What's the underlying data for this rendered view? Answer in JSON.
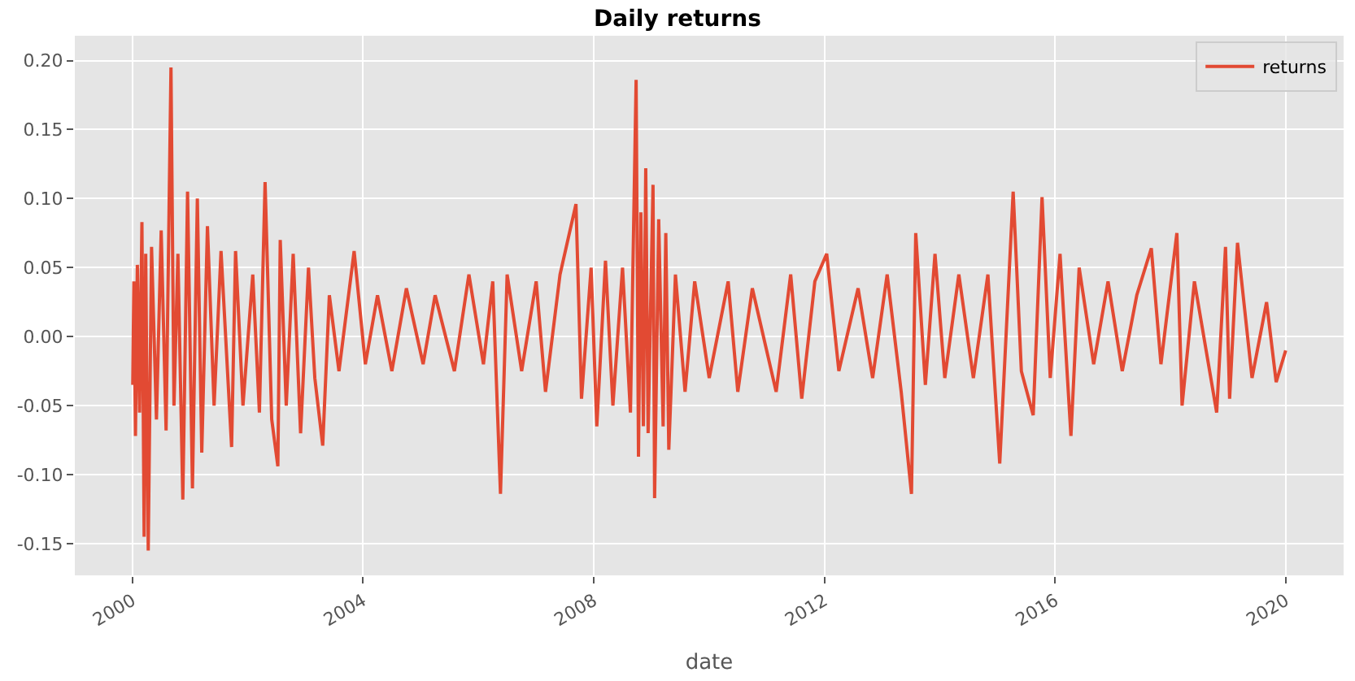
{
  "chart_data": {
    "type": "line",
    "title": "Daily returns",
    "xlabel": "date",
    "x": [
      "2000-01-03",
      "2000-01-10",
      "2000-01-20",
      "2000-02-01",
      "2000-02-15",
      "2000-03-01",
      "2000-03-15",
      "2000-03-25",
      "2000-04-10",
      "2000-05-01",
      "2000-06-01",
      "2000-07-01",
      "2000-08-01",
      "2000-09-01",
      "2000-09-20",
      "2000-10-15",
      "2000-11-15",
      "2000-12-15",
      "2001-01-15",
      "2001-02-15",
      "2001-03-15",
      "2001-04-20",
      "2001-06-01",
      "2001-07-15",
      "2001-09-20",
      "2001-10-15",
      "2001-12-01",
      "2002-02-01",
      "2002-03-15",
      "2002-04-20",
      "2002-06-01",
      "2002-07-10",
      "2002-07-25",
      "2002-09-01",
      "2002-10-15",
      "2002-12-01",
      "2003-01-20",
      "2003-03-01",
      "2003-04-20",
      "2003-06-01",
      "2003-08-01",
      "2003-11-05",
      "2004-01-15",
      "2004-04-01",
      "2004-07-01",
      "2004-10-01",
      "2005-01-15",
      "2005-04-01",
      "2005-08-01",
      "2005-11-01",
      "2006-02-01",
      "2006-04-01",
      "2006-05-20",
      "2006-07-01",
      "2006-10-01",
      "2007-01-01",
      "2007-03-01",
      "2007-06-01",
      "2007-09-10",
      "2007-10-15",
      "2007-12-15",
      "2008-01-20",
      "2008-03-15",
      "2008-05-01",
      "2008-07-01",
      "2008-08-20",
      "2008-09-25",
      "2008-10-10",
      "2008-10-25",
      "2008-11-10",
      "2008-11-25",
      "2008-12-10",
      "2009-01-10",
      "2009-01-20",
      "2009-02-15",
      "2009-03-15",
      "2009-04-01",
      "2009-04-20",
      "2009-06-01",
      "2009-08-01",
      "2009-10-01",
      "2010-01-01",
      "2010-05-01",
      "2010-07-01",
      "2010-10-01",
      "2011-03-01",
      "2011-06-01",
      "2011-08-10",
      "2011-11-01",
      "2012-01-15",
      "2012-04-01",
      "2012-08-01",
      "2012-11-01",
      "2013-02-01",
      "2013-05-01",
      "2013-07-05",
      "2013-08-01",
      "2013-10-01",
      "2013-12-01",
      "2014-02-01",
      "2014-05-01",
      "2014-08-01",
      "2014-11-01",
      "2015-01-15",
      "2015-04-10",
      "2015-06-01",
      "2015-08-15",
      "2015-10-10",
      "2015-12-01",
      "2016-02-01",
      "2016-04-10",
      "2016-06-01",
      "2016-09-01",
      "2016-12-01",
      "2017-03-01",
      "2017-06-01",
      "2017-09-01",
      "2017-11-01",
      "2018-02-10",
      "2018-03-15",
      "2018-06-01",
      "2018-10-20",
      "2018-12-15",
      "2019-01-10",
      "2019-03-01",
      "2019-06-01",
      "2019-09-01",
      "2019-11-01",
      "2019-12-31"
    ],
    "series": [
      {
        "name": "returns",
        "color": "#e24a33",
        "values": [
          -0.035,
          0.04,
          -0.072,
          0.052,
          -0.055,
          0.083,
          -0.145,
          0.06,
          -0.155,
          0.065,
          -0.06,
          0.077,
          -0.068,
          0.195,
          -0.05,
          0.06,
          -0.118,
          0.105,
          -0.11,
          0.1,
          -0.084,
          0.08,
          -0.05,
          0.062,
          -0.08,
          0.062,
          -0.05,
          0.045,
          -0.055,
          0.112,
          -0.06,
          -0.094,
          0.07,
          -0.05,
          0.06,
          -0.07,
          0.05,
          -0.03,
          -0.079,
          0.03,
          -0.025,
          0.062,
          -0.02,
          0.03,
          -0.025,
          0.035,
          -0.02,
          0.03,
          -0.025,
          0.045,
          -0.02,
          0.04,
          -0.114,
          0.045,
          -0.025,
          0.04,
          -0.04,
          0.045,
          0.096,
          -0.045,
          0.05,
          -0.065,
          0.055,
          -0.05,
          0.05,
          -0.055,
          0.186,
          -0.087,
          0.09,
          -0.065,
          0.122,
          -0.07,
          0.11,
          -0.117,
          0.085,
          -0.065,
          0.075,
          -0.082,
          0.045,
          -0.04,
          0.04,
          -0.03,
          0.04,
          -0.04,
          0.035,
          -0.04,
          0.045,
          -0.045,
          0.04,
          0.06,
          -0.025,
          0.035,
          -0.03,
          0.045,
          -0.04,
          -0.114,
          0.075,
          -0.035,
          0.06,
          -0.03,
          0.045,
          -0.03,
          0.045,
          -0.092,
          0.105,
          -0.025,
          -0.057,
          0.101,
          -0.03,
          0.06,
          -0.072,
          0.05,
          -0.02,
          0.04,
          -0.025,
          0.03,
          0.064,
          -0.02,
          0.075,
          -0.05,
          0.04,
          -0.055,
          0.065,
          -0.045,
          0.068,
          -0.03,
          0.025,
          -0.033,
          -0.01
        ]
      }
    ],
    "xlim": [
      "1999-01-01",
      "2021-01-01"
    ],
    "xticks": [
      {
        "value": "2000-01-01",
        "label": "2000"
      },
      {
        "value": "2004-01-01",
        "label": "2004"
      },
      {
        "value": "2008-01-01",
        "label": "2008"
      },
      {
        "value": "2012-01-01",
        "label": "2012"
      },
      {
        "value": "2016-01-01",
        "label": "2016"
      },
      {
        "value": "2020-01-01",
        "label": "2020"
      }
    ],
    "ylim": [
      -0.173,
      0.218
    ],
    "yticks": [
      {
        "value": -0.15,
        "label": "-0.15"
      },
      {
        "value": -0.1,
        "label": "-0.10"
      },
      {
        "value": -0.05,
        "label": "-0.05"
      },
      {
        "value": 0,
        "label": "0.00"
      },
      {
        "value": 0.05,
        "label": "0.05"
      },
      {
        "value": 0.1,
        "label": "0.10"
      },
      {
        "value": 0.15,
        "label": "0.15"
      },
      {
        "value": 0.2,
        "label": "0.20"
      }
    ],
    "grid": true,
    "legend": "top right",
    "marker": "none",
    "line_style": "solid"
  }
}
